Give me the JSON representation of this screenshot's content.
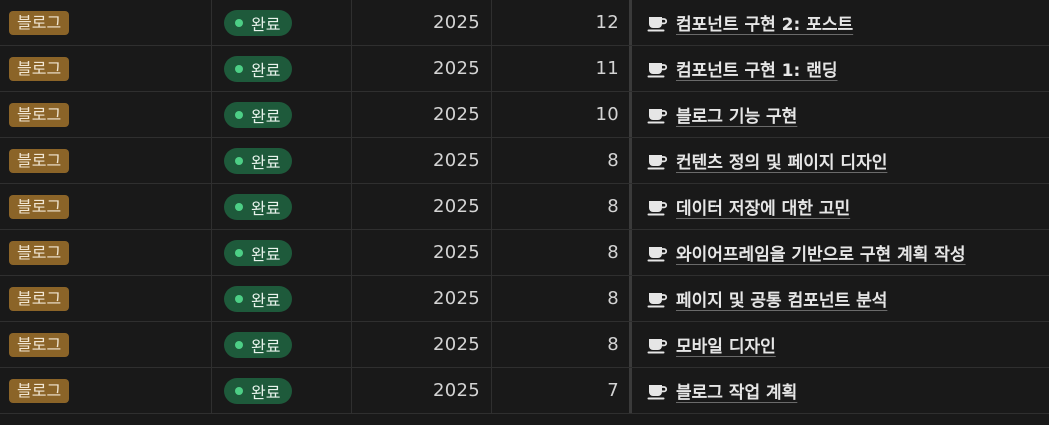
{
  "rows": [
    {
      "category": "블로그",
      "status": "완료",
      "year": "2025",
      "month": "12",
      "title": "컴포넌트 구현 2: 포스트",
      "icon": "coffee-cup-icon"
    },
    {
      "category": "블로그",
      "status": "완료",
      "year": "2025",
      "month": "11",
      "title": "컴포넌트 구현 1: 랜딩",
      "icon": "coffee-cup-icon"
    },
    {
      "category": "블로그",
      "status": "완료",
      "year": "2025",
      "month": "10",
      "title": "블로그 기능 구현",
      "icon": "coffee-cup-icon"
    },
    {
      "category": "블로그",
      "status": "완료",
      "year": "2025",
      "month": "8",
      "title": "컨텐츠 정의 및 페이지 디자인",
      "icon": "coffee-cup-icon"
    },
    {
      "category": "블로그",
      "status": "완료",
      "year": "2025",
      "month": "8",
      "title": "데이터 저장에 대한 고민",
      "icon": "coffee-cup-icon"
    },
    {
      "category": "블로그",
      "status": "완료",
      "year": "2025",
      "month": "8",
      "title": "와이어프레임을 기반으로 구현 계획 작성",
      "icon": "coffee-cup-icon"
    },
    {
      "category": "블로그",
      "status": "완료",
      "year": "2025",
      "month": "8",
      "title": "페이지 및 공통 컴포넌트 분석",
      "icon": "coffee-cup-icon"
    },
    {
      "category": "블로그",
      "status": "완료",
      "year": "2025",
      "month": "8",
      "title": "모바일 디자인",
      "icon": "coffee-cup-icon"
    },
    {
      "category": "블로그",
      "status": "완료",
      "year": "2025",
      "month": "7",
      "title": "블로그 작업 계획",
      "icon": "coffee-cup-icon"
    }
  ],
  "colors": {
    "background": "#191919",
    "category_tag": "#8b6428",
    "status_pill": "#1e5a3b",
    "status_dot": "#4dcf86",
    "divider": "#2f2f2f"
  }
}
